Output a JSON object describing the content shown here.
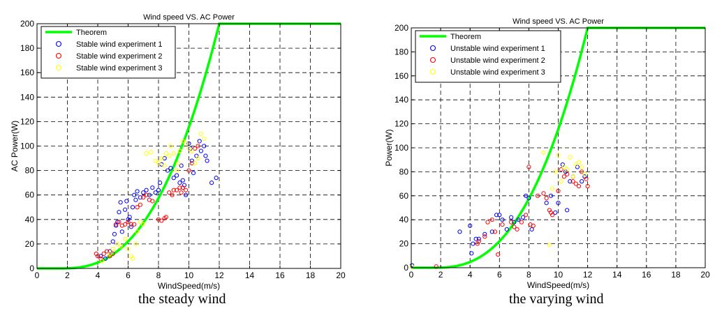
{
  "chart_data": [
    {
      "type": "scatter",
      "title": "Wind speed VS. AC Power",
      "xlabel": "WindSpeed(m/s)",
      "ylabel": "AC Power(W)",
      "xlim": [
        0,
        20
      ],
      "ylim": [
        0,
        200
      ],
      "xticks": [
        "0",
        "2",
        "4",
        "6",
        "8",
        "10",
        "12",
        "14",
        "16",
        "18",
        "20"
      ],
      "yticks": [
        "0",
        "20",
        "40",
        "60",
        "80",
        "100",
        "120",
        "140",
        "160",
        "180",
        "200"
      ],
      "grid": true,
      "legend_position": "top-left",
      "caption": "the steady wind",
      "theorem": {
        "name": "Theorem",
        "color": "#00ff00",
        "cutin": 1.5,
        "rated": 12,
        "rated_power": 200
      },
      "series": [
        {
          "name": "Stable wind experiment 1",
          "color": "#0000ff",
          "points": [
            [
              4.2,
              10
            ],
            [
              4.5,
              8
            ],
            [
              4.8,
              14
            ],
            [
              5.0,
              22
            ],
            [
              5.1,
              28
            ],
            [
              5.2,
              35
            ],
            [
              5.3,
              38
            ],
            [
              5.4,
              46
            ],
            [
              5.5,
              54
            ],
            [
              5.6,
              30
            ],
            [
              5.8,
              48
            ],
            [
              5.9,
              55
            ],
            [
              6.0,
              40
            ],
            [
              6.1,
              42
            ],
            [
              6.2,
              34
            ],
            [
              6.3,
              50
            ],
            [
              6.4,
              60
            ],
            [
              6.5,
              56
            ],
            [
              6.6,
              63
            ],
            [
              6.8,
              58
            ],
            [
              7.0,
              62
            ],
            [
              7.2,
              64
            ],
            [
              7.4,
              60
            ],
            [
              7.6,
              66
            ],
            [
              7.8,
              62
            ],
            [
              8.0,
              64
            ],
            [
              8.1,
              70
            ],
            [
              8.2,
              85
            ],
            [
              8.4,
              90
            ],
            [
              8.6,
              80
            ],
            [
              8.8,
              82
            ],
            [
              9.0,
              74
            ],
            [
              9.2,
              76
            ],
            [
              9.4,
              70
            ],
            [
              9.5,
              84
            ],
            [
              9.6,
              72
            ],
            [
              9.7,
              68
            ],
            [
              9.8,
              60
            ],
            [
              10.0,
              102
            ],
            [
              10.1,
              98
            ],
            [
              10.2,
              88
            ],
            [
              10.3,
              78
            ],
            [
              10.5,
              92
            ],
            [
              10.7,
              104
            ],
            [
              10.8,
              96
            ],
            [
              11.0,
              100
            ],
            [
              11.1,
              92
            ],
            [
              11.2,
              88
            ],
            [
              11.5,
              70
            ],
            [
              11.8,
              74
            ]
          ]
        },
        {
          "name": "Stable wind experiment 2",
          "color": "#ff0000",
          "points": [
            [
              3.9,
              12
            ],
            [
              4.0,
              10
            ],
            [
              4.2,
              8
            ],
            [
              4.4,
              12
            ],
            [
              4.6,
              14
            ],
            [
              4.8,
              10
            ],
            [
              5.0,
              12
            ],
            [
              5.2,
              36
            ],
            [
              5.4,
              38
            ],
            [
              5.6,
              35
            ],
            [
              5.8,
              36
            ],
            [
              6.0,
              38
            ],
            [
              6.2,
              36
            ],
            [
              6.4,
              36
            ],
            [
              6.6,
              50
            ],
            [
              6.8,
              52
            ],
            [
              7.0,
              58
            ],
            [
              7.2,
              60
            ],
            [
              7.4,
              56
            ],
            [
              7.6,
              55
            ],
            [
              8.0,
              40
            ],
            [
              8.2,
              39
            ],
            [
              8.4,
              41
            ],
            [
              8.5,
              42
            ],
            [
              8.7,
              62
            ],
            [
              8.9,
              60
            ],
            [
              9.0,
              64
            ],
            [
              9.2,
              64
            ],
            [
              9.4,
              66
            ],
            [
              9.5,
              62
            ],
            [
              9.6,
              66
            ],
            [
              9.8,
              64
            ],
            [
              10.0,
              80
            ],
            [
              10.2,
              86
            ],
            [
              10.4,
              98
            ],
            [
              10.6,
              100
            ]
          ]
        },
        {
          "name": "Stable wind experiment 3",
          "color": "#ffff00",
          "points": [
            [
              4.3,
              6
            ],
            [
              4.8,
              12
            ],
            [
              5.0,
              16
            ],
            [
              5.3,
              20
            ],
            [
              5.5,
              18
            ],
            [
              5.8,
              24
            ],
            [
              6.0,
              16
            ],
            [
              6.2,
              10
            ],
            [
              6.3,
              8
            ],
            [
              6.5,
              20
            ],
            [
              6.6,
              30
            ],
            [
              6.8,
              38
            ],
            [
              7.0,
              36
            ],
            [
              7.2,
              94
            ],
            [
              7.5,
              95
            ],
            [
              7.8,
              88
            ],
            [
              8.0,
              86
            ],
            [
              8.2,
              90
            ],
            [
              8.4,
              84
            ],
            [
              8.5,
              94
            ],
            [
              8.7,
              92
            ],
            [
              8.8,
              100
            ],
            [
              9.0,
              94
            ],
            [
              9.2,
              80
            ],
            [
              9.3,
              86
            ],
            [
              9.4,
              96
            ],
            [
              9.6,
              104
            ],
            [
              9.8,
              102
            ],
            [
              10.0,
              98
            ],
            [
              10.2,
              96
            ],
            [
              10.4,
              86
            ],
            [
              10.6,
              90
            ],
            [
              10.8,
              110
            ],
            [
              11.0,
              106
            ]
          ]
        }
      ]
    },
    {
      "type": "scatter",
      "title": "Wind speed VS. AC Power",
      "xlabel": "WindSpeed(m/s)",
      "ylabel": "Power(W)",
      "xlim": [
        0,
        20
      ],
      "ylim": [
        0,
        200
      ],
      "xticks": [
        "0",
        "2",
        "4",
        "6",
        "8",
        "10",
        "12",
        "14",
        "16",
        "18",
        "20"
      ],
      "yticks": [
        "0",
        "20",
        "40",
        "60",
        "80",
        "100",
        "120",
        "140",
        "160",
        "180",
        "200"
      ],
      "grid": true,
      "legend_position": "top-left",
      "caption": "the varying wind",
      "theorem": {
        "name": "Theorem",
        "color": "#00ff00",
        "cutin": 1.5,
        "rated": 12,
        "rated_power": 200
      },
      "series": [
        {
          "name": "Unstable wind experiment 1",
          "color": "#0000ff",
          "points": [
            [
              0.05,
              2
            ],
            [
              3.3,
              30
            ],
            [
              4.0,
              35
            ],
            [
              4.1,
              12
            ],
            [
              4.2,
              20
            ],
            [
              4.4,
              24
            ],
            [
              4.6,
              24
            ],
            [
              5.0,
              28
            ],
            [
              5.5,
              30
            ],
            [
              5.8,
              44
            ],
            [
              6.0,
              44
            ],
            [
              6.2,
              40
            ],
            [
              6.5,
              32
            ],
            [
              6.8,
              42
            ],
            [
              7.0,
              38
            ],
            [
              7.3,
              40
            ],
            [
              7.6,
              42
            ],
            [
              7.8,
              60
            ],
            [
              8.0,
              58
            ],
            [
              8.2,
              32
            ],
            [
              9.2,
              54
            ],
            [
              9.5,
              60
            ],
            [
              9.8,
              46
            ],
            [
              10.0,
              54
            ],
            [
              10.3,
              86
            ],
            [
              10.5,
              80
            ],
            [
              10.6,
              48
            ],
            [
              10.8,
              72
            ],
            [
              11.0,
              76
            ],
            [
              11.3,
              84
            ],
            [
              11.6,
              72
            ],
            [
              11.8,
              76
            ]
          ]
        },
        {
          "name": "Unstable wind experiment 2",
          "color": "#ff0000",
          "points": [
            [
              1.7,
              1
            ],
            [
              4.5,
              20
            ],
            [
              4.6,
              22
            ],
            [
              5.0,
              26
            ],
            [
              5.2,
              38
            ],
            [
              5.5,
              40
            ],
            [
              5.7,
              30
            ],
            [
              5.9,
              11
            ],
            [
              6.2,
              36
            ],
            [
              6.8,
              38
            ],
            [
              7.0,
              34
            ],
            [
              7.2,
              32
            ],
            [
              7.5,
              38
            ],
            [
              7.8,
              44
            ],
            [
              8.0,
              84
            ],
            [
              8.1,
              36
            ],
            [
              8.3,
              35
            ],
            [
              8.6,
              60
            ],
            [
              9.0,
              62
            ],
            [
              9.2,
              58
            ],
            [
              9.4,
              48
            ],
            [
              9.5,
              46
            ],
            [
              9.6,
              44
            ],
            [
              10.0,
              64
            ],
            [
              10.2,
              82
            ],
            [
              10.4,
              76
            ],
            [
              10.6,
              78
            ],
            [
              11.0,
              72
            ],
            [
              11.2,
              70
            ],
            [
              11.4,
              68
            ],
            [
              11.6,
              80
            ],
            [
              11.9,
              74
            ],
            [
              12.0,
              68
            ]
          ]
        },
        {
          "name": "Unstable wind experiment 3",
          "color": "#ffff00",
          "points": [
            [
              0.05,
              1
            ],
            [
              9.0,
              96
            ],
            [
              9.4,
              19
            ],
            [
              9.6,
              66
            ],
            [
              9.8,
              80
            ],
            [
              10.0,
              94
            ],
            [
              10.2,
              72
            ],
            [
              10.4,
              84
            ],
            [
              10.6,
              82
            ],
            [
              10.8,
              92
            ],
            [
              11.0,
              76
            ],
            [
              11.2,
              86
            ],
            [
              11.4,
              88
            ],
            [
              11.6,
              84
            ],
            [
              11.8,
              78
            ]
          ]
        }
      ]
    }
  ]
}
